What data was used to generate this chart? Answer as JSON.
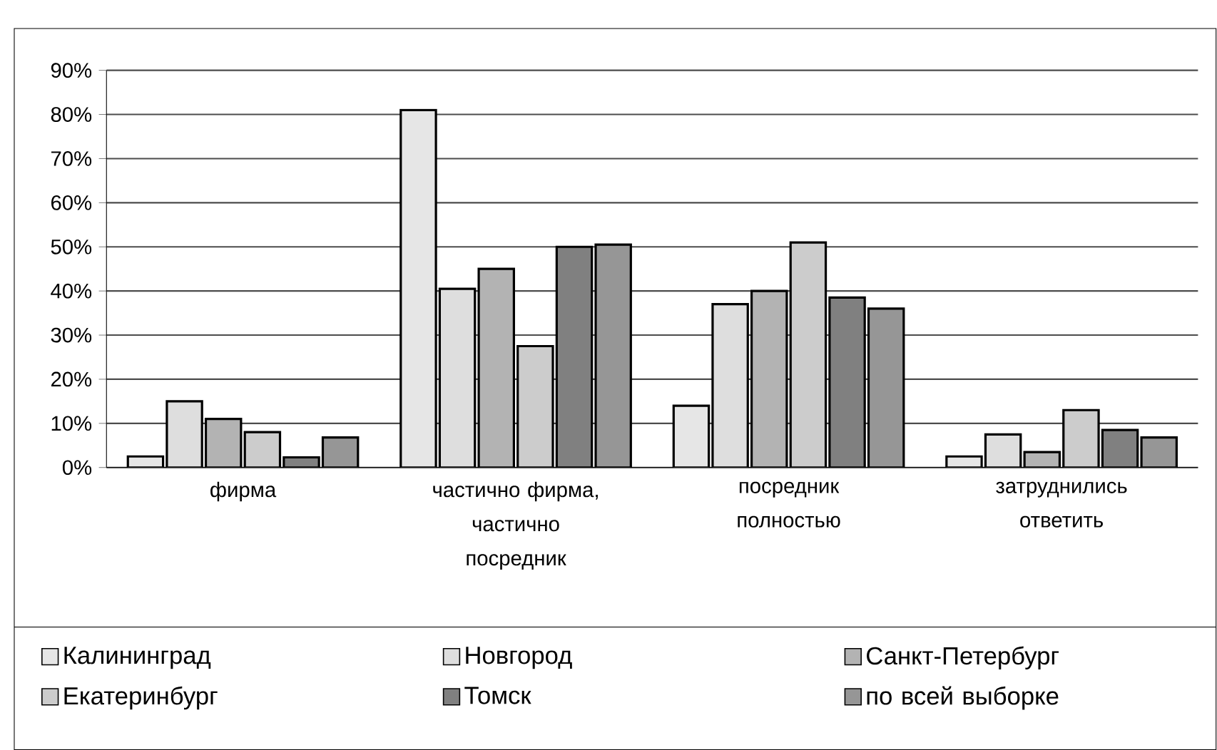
{
  "chart_data": {
    "type": "bar",
    "categories": [
      "фирма",
      "частично фирма, частично посредник",
      "посредник полностью",
      "затруднились ответить"
    ],
    "series": [
      {
        "name": "Калининград",
        "color": "#e6e6e6",
        "values": [
          2.5,
          81,
          14,
          2.5
        ]
      },
      {
        "name": "Новгород",
        "color": "#dedede",
        "values": [
          15,
          40.5,
          37,
          7.5
        ]
      },
      {
        "name": "Санкт-Петербург",
        "color": "#b3b3b3",
        "values": [
          11,
          45,
          40,
          3.5
        ]
      },
      {
        "name": "Екатеринбург",
        "color": "#cccccc",
        "values": [
          8,
          27.5,
          51,
          13
        ]
      },
      {
        "name": "Томск",
        "color": "#808080",
        "values": [
          2.3,
          50,
          38.5,
          8.5
        ]
      },
      {
        "name": "по всей выборке",
        "color": "#969696",
        "values": [
          6.8,
          50.5,
          36,
          6.8
        ]
      }
    ],
    "ylim": [
      0,
      90
    ],
    "yticks": [
      {
        "value": 0,
        "label": "0%"
      },
      {
        "value": 10,
        "label": "10%"
      },
      {
        "value": 20,
        "label": "20%"
      },
      {
        "value": 30,
        "label": "30%"
      },
      {
        "value": 40,
        "label": "40%"
      },
      {
        "value": 50,
        "label": "50%"
      },
      {
        "value": 60,
        "label": "60%"
      },
      {
        "value": 70,
        "label": "70%"
      },
      {
        "value": 80,
        "label": "80%"
      },
      {
        "value": 90,
        "label": "90%"
      }
    ],
    "grid": "y",
    "legend": "bottom"
  }
}
